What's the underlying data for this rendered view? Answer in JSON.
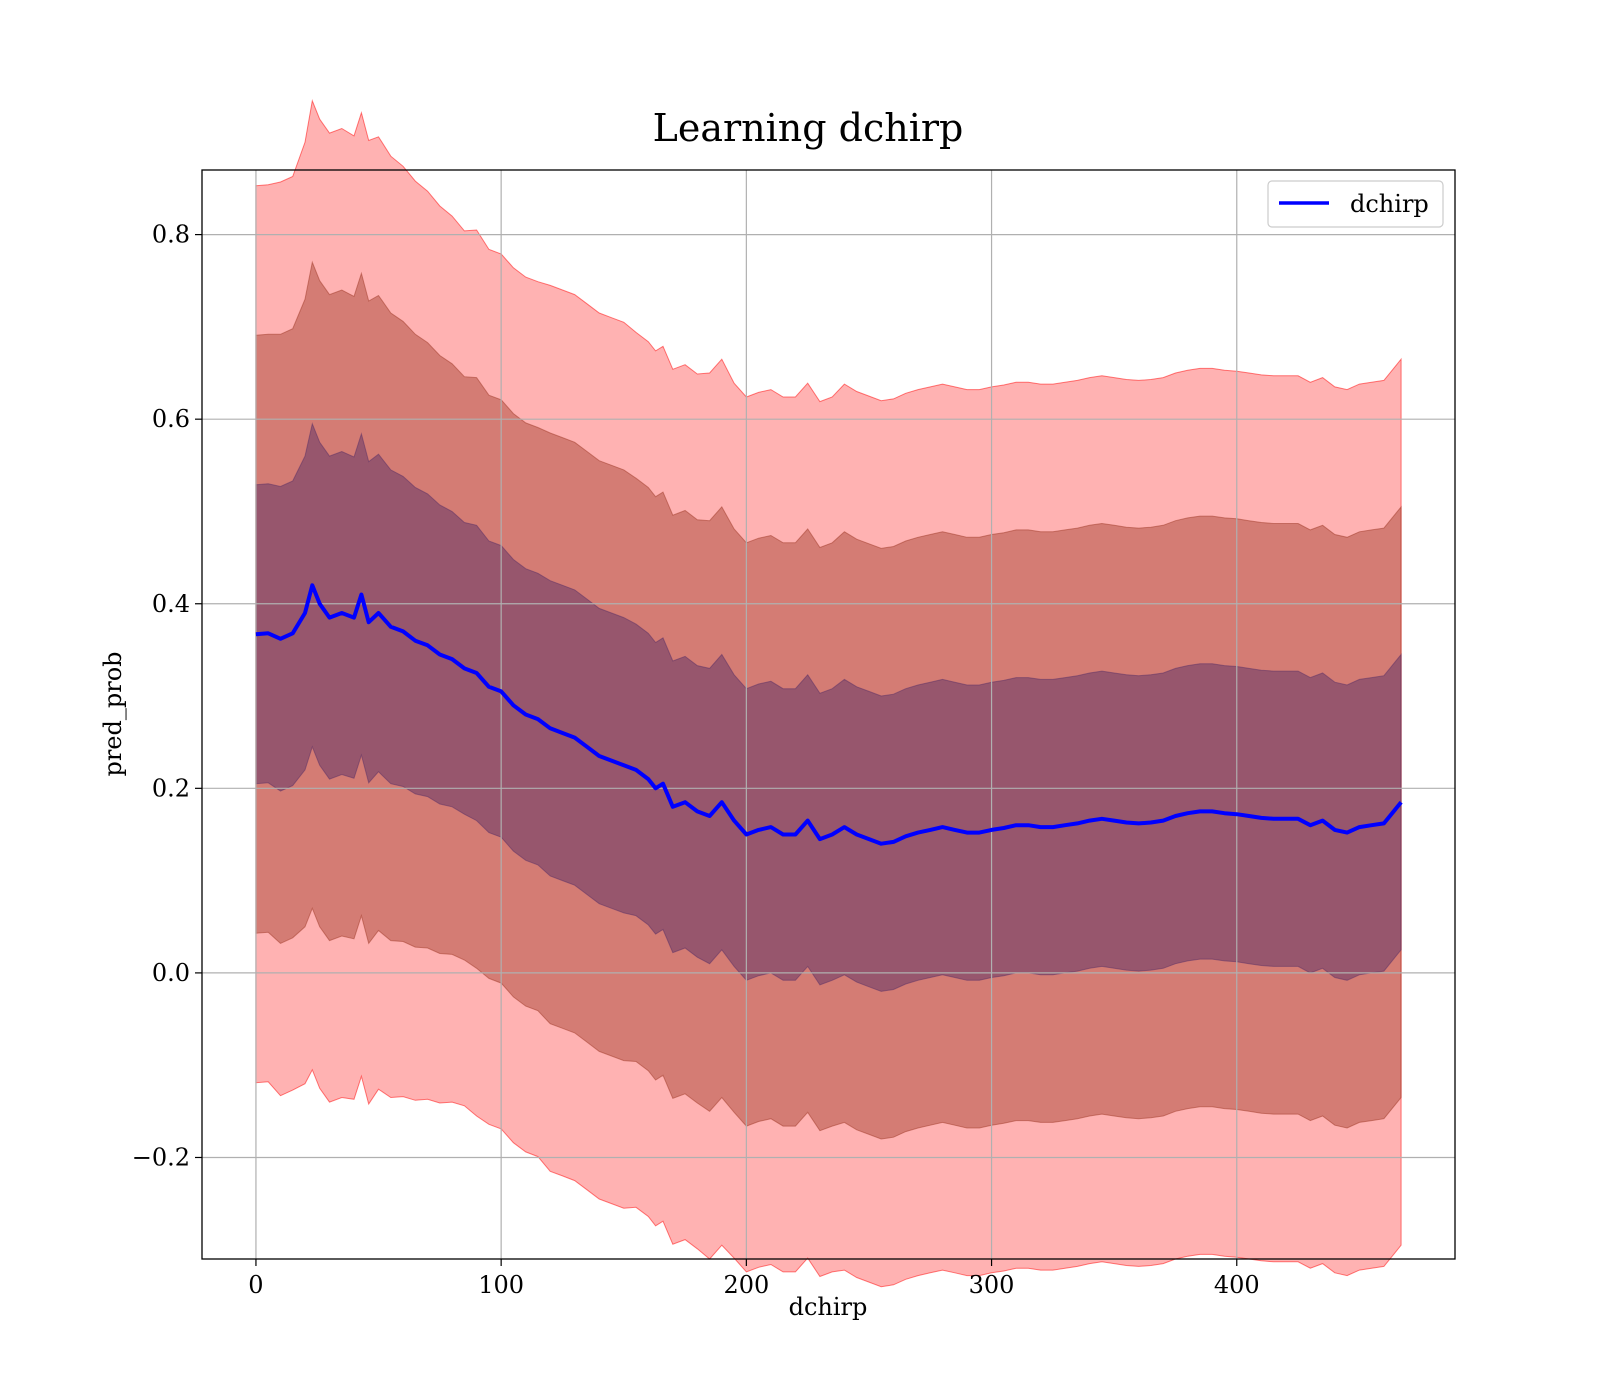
{
  "chart_data": {
    "type": "line",
    "title": "Learning dchirp",
    "xlabel": "dchirp",
    "ylabel": "pred_prob",
    "xlim": [
      -22,
      489
    ],
    "ylim": [
      -0.31,
      0.87
    ],
    "xticks": [
      0,
      100,
      200,
      300,
      400
    ],
    "xtick_labels": [
      "0",
      "100",
      "200",
      "300",
      "400"
    ],
    "yticks": [
      -0.2,
      0.0,
      0.2,
      0.4,
      0.6,
      0.8
    ],
    "ytick_labels": [
      "−0.2",
      "0.0",
      "0.2",
      "0.4",
      "0.6",
      "0.8"
    ],
    "grid": true,
    "legend": {
      "position": "upper right",
      "entries": [
        "dchirp"
      ]
    },
    "colors": {
      "line": "#0000ff",
      "band": "#ff0000",
      "band_1": "#ff4d4d",
      "band_2": "#a03a28",
      "band_3": "#5a2f66"
    },
    "series": [
      {
        "name": "dchirp",
        "x": [
          0,
          5,
          10,
          15,
          20,
          23,
          26,
          30,
          35,
          40,
          43,
          46,
          50,
          55,
          60,
          65,
          70,
          75,
          80,
          85,
          90,
          95,
          100,
          105,
          110,
          115,
          120,
          125,
          130,
          135,
          140,
          145,
          150,
          155,
          160,
          163,
          166,
          170,
          175,
          180,
          185,
          190,
          195,
          200,
          205,
          210,
          215,
          220,
          225,
          230,
          235,
          240,
          245,
          250,
          255,
          260,
          265,
          270,
          275,
          280,
          285,
          290,
          295,
          300,
          305,
          310,
          315,
          320,
          325,
          330,
          335,
          340,
          345,
          350,
          355,
          360,
          365,
          370,
          375,
          380,
          385,
          390,
          395,
          400,
          405,
          410,
          415,
          420,
          425,
          430,
          435,
          440,
          445,
          450,
          455,
          460,
          467
        ],
        "mean": [
          0.367,
          0.368,
          0.362,
          0.368,
          0.39,
          0.42,
          0.4,
          0.385,
          0.39,
          0.385,
          0.41,
          0.38,
          0.39,
          0.375,
          0.37,
          0.36,
          0.355,
          0.345,
          0.34,
          0.33,
          0.325,
          0.31,
          0.305,
          0.29,
          0.28,
          0.275,
          0.265,
          0.26,
          0.255,
          0.245,
          0.235,
          0.23,
          0.225,
          0.22,
          0.21,
          0.2,
          0.205,
          0.18,
          0.185,
          0.175,
          0.17,
          0.185,
          0.165,
          0.15,
          0.155,
          0.158,
          0.15,
          0.15,
          0.165,
          0.145,
          0.15,
          0.158,
          0.15,
          0.145,
          0.14,
          0.142,
          0.148,
          0.152,
          0.155,
          0.158,
          0.155,
          0.152,
          0.152,
          0.155,
          0.157,
          0.16,
          0.16,
          0.158,
          0.158,
          0.16,
          0.162,
          0.165,
          0.167,
          0.165,
          0.163,
          0.162,
          0.163,
          0.165,
          0.17,
          0.173,
          0.175,
          0.175,
          0.173,
          0.172,
          0.17,
          0.168,
          0.167,
          0.167,
          0.167,
          0.16,
          0.165,
          0.155,
          0.152,
          0.158,
          0.16,
          0.162,
          0.185
        ],
        "std": [
          0.162,
          0.162,
          0.165,
          0.165,
          0.17,
          0.175,
          0.175,
          0.175,
          0.175,
          0.174,
          0.174,
          0.174,
          0.172,
          0.17,
          0.168,
          0.166,
          0.164,
          0.162,
          0.16,
          0.158,
          0.16,
          0.158,
          0.158,
          0.158,
          0.158,
          0.158,
          0.16,
          0.16,
          0.16,
          0.16,
          0.16,
          0.16,
          0.16,
          0.158,
          0.158,
          0.158,
          0.158,
          0.158,
          0.158,
          0.158,
          0.16,
          0.16,
          0.158,
          0.158,
          0.158,
          0.158,
          0.158,
          0.158,
          0.158,
          0.158,
          0.158,
          0.16,
          0.16,
          0.16,
          0.16,
          0.16,
          0.16,
          0.16,
          0.16,
          0.16,
          0.16,
          0.16,
          0.16,
          0.16,
          0.16,
          0.16,
          0.16,
          0.16,
          0.16,
          0.16,
          0.16,
          0.16,
          0.16,
          0.16,
          0.16,
          0.16,
          0.16,
          0.16,
          0.16,
          0.16,
          0.16,
          0.16,
          0.16,
          0.16,
          0.16,
          0.16,
          0.16,
          0.16,
          0.16,
          0.16,
          0.16,
          0.16,
          0.16,
          0.16,
          0.16,
          0.16,
          0.16
        ]
      }
    ]
  }
}
